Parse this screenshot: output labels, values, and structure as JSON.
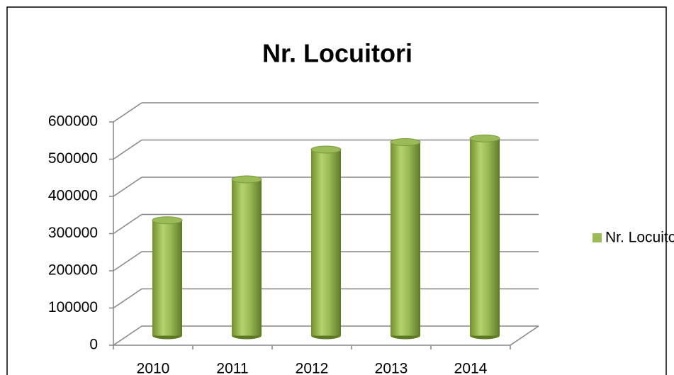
{
  "chart_data": {
    "type": "bar",
    "title": "Nr. Locuitori",
    "categories": [
      "2010",
      "2011",
      "2012",
      "2013",
      "2014"
    ],
    "series": [
      {
        "name": "Nr. Locuitori",
        "color": "#9bbb59",
        "values": [
          310000,
          420000,
          500000,
          520000,
          530000
        ]
      }
    ],
    "ylim": [
      0,
      600000
    ],
    "yticks": [
      0,
      100000,
      200000,
      300000,
      400000,
      500000,
      600000
    ],
    "grid": true,
    "legend": "right"
  }
}
